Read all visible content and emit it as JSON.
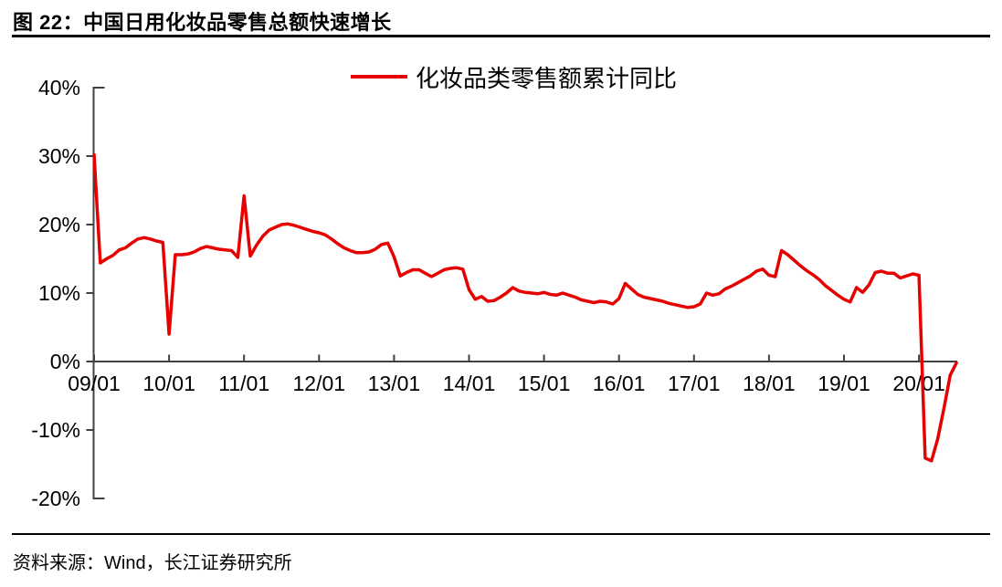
{
  "figure": {
    "title": "图 22：中国日用化妆品零售总额快速增长",
    "source": "资料来源：Wind，长江证券研究所"
  },
  "chart_data": {
    "type": "line",
    "title": "图 22：中国日用化妆品零售总额快速增长",
    "legend_label": "化妆品类零售额累计同比",
    "legend_position": "top-center",
    "grid": false,
    "axis_color": "#404040",
    "ylim": [
      -20,
      40
    ],
    "y_unit": "%",
    "y_tick_values": [
      40,
      30,
      20,
      10,
      0,
      -10,
      -20
    ],
    "y_tick_labels": [
      "40%",
      "30%",
      "20%",
      "10%",
      "0%",
      "-10%",
      "-20%"
    ],
    "x_tick_labels": [
      "09/01",
      "10/01",
      "11/01",
      "12/01",
      "13/01",
      "14/01",
      "15/01",
      "16/01",
      "17/01",
      "18/01",
      "19/01",
      "20/01"
    ],
    "x_start": "2009-01",
    "x_frequency": "monthly",
    "series": [
      {
        "name": "化妆品类零售额累计同比",
        "color": "#e60000",
        "values": [
          30.2,
          14.4,
          15.0,
          15.5,
          16.3,
          16.6,
          17.3,
          17.9,
          18.1,
          17.9,
          17.6,
          17.4,
          4.0,
          15.6,
          15.6,
          15.7,
          16.0,
          16.5,
          16.8,
          16.6,
          16.4,
          16.3,
          16.2,
          15.2,
          24.2,
          15.4,
          17.0,
          18.3,
          19.2,
          19.6,
          20.0,
          20.1,
          19.9,
          19.6,
          19.3,
          19.0,
          18.8,
          18.5,
          17.9,
          17.2,
          16.6,
          16.2,
          15.9,
          15.9,
          16.0,
          16.4,
          17.1,
          17.3,
          15.3,
          12.5,
          13.0,
          13.4,
          13.4,
          12.9,
          12.4,
          12.9,
          13.4,
          13.6,
          13.7,
          13.5,
          10.5,
          9.1,
          9.5,
          8.8,
          8.9,
          9.4,
          10.0,
          10.8,
          10.3,
          10.1,
          10.0,
          9.9,
          10.1,
          9.8,
          9.7,
          10.0,
          9.7,
          9.4,
          9.0,
          8.8,
          8.6,
          8.8,
          8.7,
          8.4,
          9.2,
          11.4,
          10.6,
          9.8,
          9.4,
          9.2,
          9.0,
          8.8,
          8.5,
          8.3,
          8.1,
          7.9,
          8.0,
          8.4,
          10.0,
          9.7,
          9.9,
          10.6,
          11.0,
          11.5,
          12.0,
          12.5,
          13.2,
          13.5,
          12.6,
          12.4,
          16.2,
          15.6,
          14.8,
          14.0,
          13.3,
          12.7,
          12.0,
          11.1,
          10.4,
          9.7,
          9.1,
          8.7,
          10.8,
          10.1,
          11.2,
          13.0,
          13.2,
          12.9,
          12.9,
          12.2,
          12.5,
          12.8,
          12.6,
          -14.1,
          -14.5,
          -11.3,
          -6.8,
          -2.0,
          -0.2
        ]
      }
    ]
  }
}
